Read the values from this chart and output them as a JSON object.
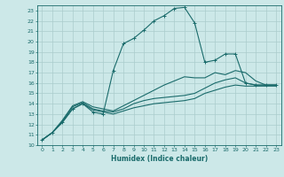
{
  "xlabel": "Humidex (Indice chaleur)",
  "ylabel": "",
  "bg_color": "#cce8e8",
  "grid_color": "#aacccc",
  "line_color": "#1a6b6b",
  "xlim": [
    -0.5,
    23.5
  ],
  "ylim": [
    10,
    23.5
  ],
  "xticks": [
    0,
    1,
    2,
    3,
    4,
    5,
    6,
    7,
    8,
    9,
    10,
    11,
    12,
    13,
    14,
    15,
    16,
    17,
    18,
    19,
    20,
    21,
    22,
    23
  ],
  "yticks": [
    10,
    11,
    12,
    13,
    14,
    15,
    16,
    17,
    18,
    19,
    20,
    21,
    22,
    23
  ],
  "curves": [
    {
      "x": [
        0,
        1,
        2,
        3,
        4,
        5,
        6,
        7,
        8,
        9,
        10,
        11,
        12,
        13,
        14,
        15,
        16,
        17,
        18,
        19,
        20,
        21,
        22,
        23
      ],
      "y": [
        10.5,
        11.2,
        12.2,
        13.5,
        14.0,
        13.2,
        13.0,
        17.2,
        19.8,
        20.3,
        21.1,
        22.0,
        22.5,
        23.2,
        23.3,
        21.8,
        18.0,
        18.2,
        18.8,
        18.8,
        16.0,
        15.8,
        15.8,
        15.8
      ],
      "marker": "+"
    },
    {
      "x": [
        0,
        1,
        2,
        3,
        4,
        5,
        6,
        7,
        8,
        9,
        10,
        11,
        12,
        13,
        14,
        15,
        16,
        17,
        18,
        19,
        20,
        21,
        22,
        23
      ],
      "y": [
        10.5,
        11.2,
        12.3,
        13.7,
        14.1,
        13.5,
        13.3,
        13.2,
        13.5,
        14.0,
        14.3,
        14.5,
        14.6,
        14.7,
        14.8,
        15.0,
        15.5,
        16.0,
        16.3,
        16.5,
        16.0,
        15.8,
        15.8,
        15.8
      ],
      "marker": null
    },
    {
      "x": [
        0,
        1,
        2,
        3,
        4,
        5,
        6,
        7,
        8,
        9,
        10,
        11,
        12,
        13,
        14,
        15,
        16,
        17,
        18,
        19,
        20,
        21,
        22,
        23
      ],
      "y": [
        10.5,
        11.2,
        12.2,
        13.5,
        14.0,
        13.4,
        13.2,
        13.0,
        13.3,
        13.6,
        13.8,
        14.0,
        14.1,
        14.2,
        14.3,
        14.5,
        15.0,
        15.3,
        15.6,
        15.8,
        15.7,
        15.7,
        15.7,
        15.7
      ],
      "marker": null
    },
    {
      "x": [
        0,
        1,
        2,
        3,
        4,
        5,
        6,
        7,
        8,
        9,
        10,
        11,
        12,
        13,
        14,
        15,
        16,
        17,
        18,
        19,
        20,
        21,
        22,
        23
      ],
      "y": [
        10.5,
        11.2,
        12.4,
        13.8,
        14.2,
        13.7,
        13.5,
        13.3,
        13.8,
        14.3,
        14.8,
        15.3,
        15.8,
        16.2,
        16.6,
        16.5,
        16.5,
        17.0,
        16.8,
        17.2,
        17.0,
        16.2,
        15.8,
        15.8
      ],
      "marker": null
    }
  ]
}
